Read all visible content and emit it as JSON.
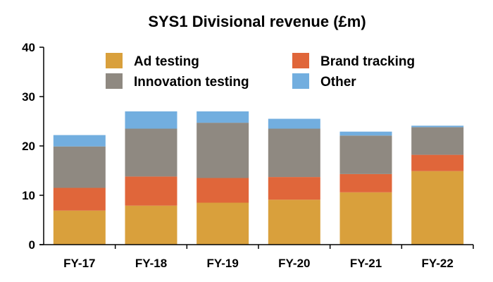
{
  "chart_data": {
    "type": "bar",
    "stacked": true,
    "title": "SYS1 Divisional revenue (£m)",
    "xlabel": "",
    "ylabel": "",
    "categories": [
      "FY-17",
      "FY-18",
      "FY-19",
      "FY-20",
      "FY-21",
      "FY-22"
    ],
    "series": [
      {
        "name": "Ad testing",
        "color": "#D9A03C",
        "values": [
          6.9,
          7.9,
          8.5,
          9.1,
          10.6,
          14.9
        ]
      },
      {
        "name": "Brand tracking",
        "color": "#E0663A",
        "values": [
          4.6,
          5.9,
          5.0,
          4.6,
          3.7,
          3.3
        ]
      },
      {
        "name": "Innovation testing",
        "color": "#8F8981",
        "values": [
          8.4,
          9.7,
          11.2,
          9.8,
          7.8,
          5.6
        ]
      },
      {
        "name": "Other",
        "color": "#72AEDF",
        "values": [
          2.3,
          3.5,
          2.3,
          2.0,
          0.8,
          0.3
        ]
      }
    ],
    "ylim": [
      0,
      40
    ],
    "yticks": [
      0,
      10,
      20,
      30,
      40
    ],
    "grid": false,
    "legend": {
      "placement": "top",
      "columns": 2
    }
  }
}
